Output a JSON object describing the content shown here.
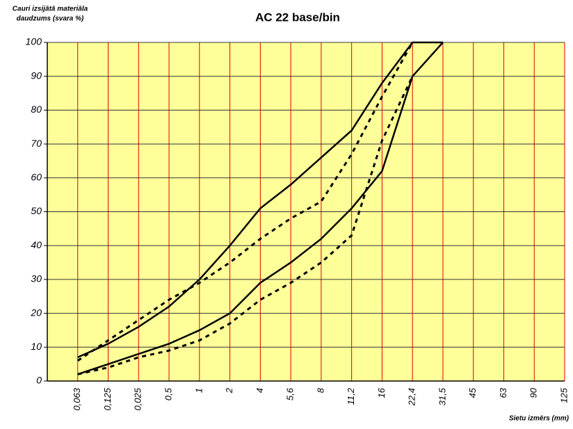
{
  "chart_data": {
    "type": "line",
    "title": "AC 22 base/bin",
    "ylabel": [
      "Cauri izsijātā materiāla",
      "daudzums (svara %)"
    ],
    "xlabel": "Sietu izmērs (mm)",
    "categories": [
      "0,063",
      "0,125",
      "0,025",
      "0,5",
      "1",
      "2",
      "4",
      "5,6",
      "8",
      "11,2",
      "16",
      "22,4",
      "31,5",
      "45",
      "63",
      "90",
      "125"
    ],
    "series": [
      {
        "color": "#000000",
        "dashed": false,
        "values": [
          7,
          11,
          16,
          22,
          30,
          40,
          51,
          58,
          66,
          74,
          88,
          100,
          100,
          null,
          null,
          null,
          null
        ]
      },
      {
        "color": "#000000",
        "dashed": false,
        "values": [
          2,
          5,
          8,
          11,
          15,
          20,
          29,
          35,
          42,
          51,
          62,
          90,
          100,
          null,
          null,
          null,
          null
        ]
      },
      {
        "color": "#000000",
        "dashed": true,
        "values": [
          6,
          12,
          18,
          24,
          29,
          35,
          42,
          48,
          53,
          67,
          84,
          100,
          null,
          null,
          null,
          null,
          null
        ]
      },
      {
        "color": "#000000",
        "dashed": true,
        "values": [
          2,
          4,
          7,
          9,
          12,
          17,
          24,
          29,
          35,
          43,
          71,
          90,
          null,
          null,
          null,
          null,
          null
        ]
      }
    ],
    "ylim": [
      0,
      100
    ],
    "yticks": [
      0,
      10,
      20,
      30,
      40,
      50,
      60,
      70,
      80,
      90,
      100
    ],
    "grid": true,
    "plot_color": "#ffff99",
    "vgrid_color": "#e00000"
  }
}
